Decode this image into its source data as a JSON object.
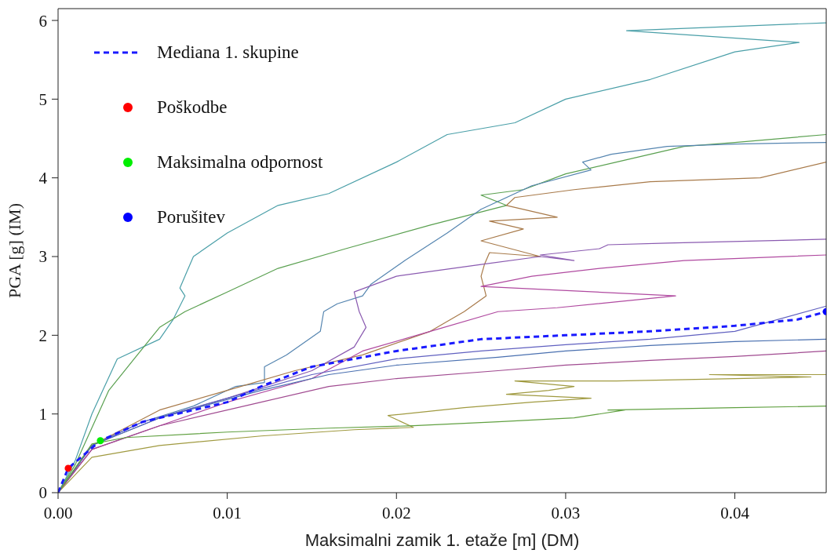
{
  "chart_data": {
    "type": "line",
    "xlabel": "Maksimalni zamik 1. etaže [m]  (DM)",
    "ylabel": "PGA [g]  (IM)",
    "xlim": [
      0,
      0.0454
    ],
    "ylim": [
      0,
      6.15
    ],
    "xticks": [
      {
        "value": 0,
        "label": "0.00"
      },
      {
        "value": 0.01,
        "label": "0.01"
      },
      {
        "value": 0.02,
        "label": "0.02"
      },
      {
        "value": 0.03,
        "label": "0.03"
      },
      {
        "value": 0.04,
        "label": "0.04"
      }
    ],
    "yticks": [
      0,
      1,
      2,
      3,
      4,
      5,
      6
    ],
    "grid": false,
    "legend": "top left",
    "marker": "none",
    "series": [
      {
        "color": "#4a9fa8",
        "x": [
          0,
          0.001,
          0.002,
          0.0035,
          0.006,
          0.0068,
          0.0075,
          0.0072,
          0.0076,
          0.008,
          0.01,
          0.013,
          0.016,
          0.02,
          0.023,
          0.027,
          0.03,
          0.035,
          0.04,
          0.0438,
          0.0336,
          0.0454
        ],
        "values": [
          0,
          0.4,
          1.0,
          1.7,
          1.95,
          2.2,
          2.5,
          2.6,
          2.8,
          3.0,
          3.3,
          3.65,
          3.8,
          4.2,
          4.55,
          4.7,
          5.0,
          5.25,
          5.6,
          5.72,
          5.87,
          5.97
        ]
      },
      {
        "color": "#5aa050",
        "x": [
          0,
          0.001,
          0.003,
          0.0045,
          0.006,
          0.0075,
          0.01,
          0.013,
          0.017,
          0.022,
          0.0265,
          0.025,
          0.0275,
          0.03,
          0.033,
          0.037,
          0.04,
          0.0454
        ],
        "values": [
          0,
          0.35,
          1.3,
          1.7,
          2.1,
          2.3,
          2.55,
          2.85,
          3.1,
          3.4,
          3.65,
          3.78,
          3.85,
          4.05,
          4.2,
          4.4,
          4.45,
          4.55
        ]
      },
      {
        "color": "#5585b0",
        "x": [
          0,
          0.002,
          0.005,
          0.008,
          0.0105,
          0.0122,
          0.0122,
          0.0135,
          0.0155,
          0.0157,
          0.0165,
          0.018,
          0.0185,
          0.0205,
          0.023,
          0.025,
          0.028,
          0.0315,
          0.031,
          0.0327,
          0.036,
          0.04,
          0.0454
        ],
        "values": [
          0,
          0.6,
          0.9,
          1.1,
          1.35,
          1.4,
          1.6,
          1.75,
          2.05,
          2.3,
          2.4,
          2.5,
          2.65,
          2.95,
          3.3,
          3.6,
          3.9,
          4.1,
          4.2,
          4.3,
          4.4,
          4.43,
          4.45
        ]
      },
      {
        "color": "#a87a4a",
        "x": [
          0,
          0.002,
          0.006,
          0.01,
          0.014,
          0.018,
          0.022,
          0.024,
          0.0253,
          0.025,
          0.0252,
          0.0255,
          0.0285,
          0.025,
          0.0275,
          0.0255,
          0.0295,
          0.0265,
          0.027,
          0.0305,
          0.035,
          0.0415,
          0.0454
        ],
        "values": [
          0,
          0.6,
          1.05,
          1.3,
          1.55,
          1.75,
          2.05,
          2.3,
          2.5,
          2.75,
          2.9,
          3.05,
          3.0,
          3.2,
          3.35,
          3.45,
          3.5,
          3.65,
          3.75,
          3.85,
          3.95,
          4.0,
          4.2
        ]
      },
      {
        "color": "#8a5ab0",
        "x": [
          0,
          0.002,
          0.006,
          0.01,
          0.015,
          0.0175,
          0.0182,
          0.0178,
          0.0175,
          0.02,
          0.025,
          0.0285,
          0.0305,
          0.0285,
          0.032,
          0.0325,
          0.036,
          0.0454
        ],
        "values": [
          0,
          0.6,
          0.95,
          1.2,
          1.55,
          1.85,
          2.1,
          2.3,
          2.55,
          2.75,
          2.9,
          3.0,
          2.95,
          3.02,
          3.1,
          3.15,
          3.17,
          3.22
        ]
      },
      {
        "color": "#b04aa0",
        "x": [
          0,
          0.002,
          0.006,
          0.01,
          0.015,
          0.018,
          0.022,
          0.026,
          0.0295,
          0.0365,
          0.025,
          0.028,
          0.032,
          0.037,
          0.0454
        ],
        "values": [
          0,
          0.55,
          0.85,
          1.15,
          1.45,
          1.8,
          2.05,
          2.3,
          2.35,
          2.5,
          2.62,
          2.75,
          2.85,
          2.95,
          3.02
        ]
      },
      {
        "color": "#6060c0",
        "x": [
          0,
          0.002,
          0.005,
          0.01,
          0.015,
          0.02,
          0.025,
          0.03,
          0.035,
          0.04,
          0.0454
        ],
        "values": [
          0,
          0.6,
          0.9,
          1.2,
          1.5,
          1.7,
          1.8,
          1.88,
          1.95,
          2.05,
          2.37
        ]
      },
      {
        "color": "#4a70b0",
        "x": [
          0,
          0.002,
          0.006,
          0.012,
          0.016,
          0.02,
          0.026,
          0.03,
          0.035,
          0.04,
          0.0454
        ],
        "values": [
          0,
          0.6,
          0.95,
          1.3,
          1.5,
          1.62,
          1.72,
          1.8,
          1.87,
          1.92,
          1.95
        ]
      },
      {
        "color": "#a04a90",
        "x": [
          0,
          0.002,
          0.006,
          0.012,
          0.016,
          0.02,
          0.026,
          0.03,
          0.035,
          0.04,
          0.0454
        ],
        "values": [
          0,
          0.55,
          0.85,
          1.15,
          1.35,
          1.45,
          1.55,
          1.62,
          1.68,
          1.73,
          1.8
        ]
      },
      {
        "color": "#a09a40",
        "x": [
          0,
          0.002,
          0.006,
          0.012,
          0.0175,
          0.021,
          0.0195,
          0.024,
          0.028,
          0.0315,
          0.0265,
          0.029,
          0.0305,
          0.027,
          0.033,
          0.04,
          0.0445,
          0.0385,
          0.0454
        ],
        "values": [
          0,
          0.45,
          0.6,
          0.72,
          0.8,
          0.83,
          0.98,
          1.08,
          1.15,
          1.2,
          1.25,
          1.3,
          1.35,
          1.42,
          1.42,
          1.45,
          1.47,
          1.5,
          1.5
        ]
      },
      {
        "color": "#60a040",
        "x": [
          0,
          0.002,
          0.004,
          0.01,
          0.016,
          0.021,
          0.026,
          0.0305,
          0.0335,
          0.0325,
          0.04,
          0.0454
        ],
        "values": [
          0,
          0.62,
          0.7,
          0.77,
          0.82,
          0.85,
          0.9,
          0.95,
          1.05,
          1.05,
          1.08,
          1.1
        ]
      },
      {
        "name": "Mediana 1. skupine",
        "color": "#1a1aff",
        "line_style": "dashed",
        "x": [
          0,
          0.0006,
          0.0025,
          0.005,
          0.008,
          0.01,
          0.012,
          0.015,
          0.02,
          0.025,
          0.03,
          0.035,
          0.04,
          0.0437,
          0.0454
        ],
        "values": [
          0,
          0.31,
          0.66,
          0.9,
          1.05,
          1.15,
          1.35,
          1.6,
          1.8,
          1.95,
          2.0,
          2.05,
          2.12,
          2.2,
          2.3
        ]
      },
      {
        "name": "Poškodbe",
        "type": "scatter",
        "marker": "circle",
        "color": "#ff0000",
        "x": [
          0.0006
        ],
        "values": [
          0.31
        ]
      },
      {
        "name": "Maksimalna odpornost",
        "type": "scatter",
        "marker": "circle",
        "color": "#00ee00",
        "x": [
          0.0025
        ],
        "values": [
          0.66
        ]
      },
      {
        "name": "Porušitev",
        "type": "scatter",
        "marker": "circle",
        "color": "#0000ff",
        "x": [
          0.0454
        ],
        "values": [
          2.3
        ]
      }
    ]
  }
}
